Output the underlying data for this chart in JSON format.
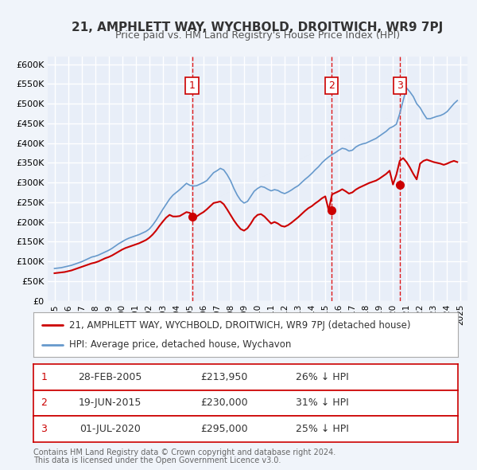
{
  "title": "21, AMPHLETT WAY, WYCHBOLD, DROITWICH, WR9 7PJ",
  "subtitle": "Price paid vs. HM Land Registry's House Price Index (HPI)",
  "bg_color": "#f0f4fa",
  "plot_bg_color": "#e8eef8",
  "grid_color": "#ffffff",
  "ylabel": "",
  "ylim": [
    0,
    620000
  ],
  "yticks": [
    0,
    50000,
    100000,
    150000,
    200000,
    250000,
    300000,
    350000,
    400000,
    450000,
    500000,
    550000,
    600000
  ],
  "ytick_labels": [
    "£0",
    "£50K",
    "£100K",
    "£150K",
    "£200K",
    "£250K",
    "£300K",
    "£350K",
    "£400K",
    "£450K",
    "£500K",
    "£550K",
    "£600K"
  ],
  "xlim_start": 1994.5,
  "xlim_end": 2025.5,
  "xticks": [
    1995,
    1996,
    1997,
    1998,
    1999,
    2000,
    2001,
    2002,
    2003,
    2004,
    2005,
    2006,
    2007,
    2008,
    2009,
    2010,
    2011,
    2012,
    2013,
    2014,
    2015,
    2016,
    2017,
    2018,
    2019,
    2020,
    2021,
    2022,
    2023,
    2024,
    2025
  ],
  "sale_color": "#cc0000",
  "hpi_color": "#6699cc",
  "sale_dot_color": "#cc0000",
  "vline_color": "#dd0000",
  "marker_label_color": "#cc0000",
  "legend_box_color": "#ffffff",
  "legend_border_color": "#aaaaaa",
  "sale_legend": "21, AMPHLETT WAY, WYCHBOLD, DROITWICH, WR9 7PJ (detached house)",
  "hpi_legend": "HPI: Average price, detached house, Wychavon",
  "transactions": [
    {
      "num": 1,
      "date": "28-FEB-2005",
      "year": 2005.16,
      "price": 213950,
      "pct": "26%",
      "dir": "↓"
    },
    {
      "num": 2,
      "date": "19-JUN-2015",
      "year": 2015.47,
      "price": 230000,
      "pct": "31%",
      "dir": "↓"
    },
    {
      "num": 3,
      "date": "01-JUL-2020",
      "year": 2020.5,
      "price": 295000,
      "pct": "25%",
      "dir": "↓"
    }
  ],
  "footer1": "Contains HM Land Registry data © Crown copyright and database right 2024.",
  "footer2": "This data is licensed under the Open Government Licence v3.0.",
  "hpi_data_x": [
    1995.0,
    1995.25,
    1995.5,
    1995.75,
    1996.0,
    1996.25,
    1996.5,
    1996.75,
    1997.0,
    1997.25,
    1997.5,
    1997.75,
    1998.0,
    1998.25,
    1998.5,
    1998.75,
    1999.0,
    1999.25,
    1999.5,
    1999.75,
    2000.0,
    2000.25,
    2000.5,
    2000.75,
    2001.0,
    2001.25,
    2001.5,
    2001.75,
    2002.0,
    2002.25,
    2002.5,
    2002.75,
    2003.0,
    2003.25,
    2003.5,
    2003.75,
    2004.0,
    2004.25,
    2004.5,
    2004.75,
    2005.0,
    2005.25,
    2005.5,
    2005.75,
    2006.0,
    2006.25,
    2006.5,
    2006.75,
    2007.0,
    2007.25,
    2007.5,
    2007.75,
    2008.0,
    2008.25,
    2008.5,
    2008.75,
    2009.0,
    2009.25,
    2009.5,
    2009.75,
    2010.0,
    2010.25,
    2010.5,
    2010.75,
    2011.0,
    2011.25,
    2011.5,
    2011.75,
    2012.0,
    2012.25,
    2012.5,
    2012.75,
    2013.0,
    2013.25,
    2013.5,
    2013.75,
    2014.0,
    2014.25,
    2014.5,
    2014.75,
    2015.0,
    2015.25,
    2015.5,
    2015.75,
    2016.0,
    2016.25,
    2016.5,
    2016.75,
    2017.0,
    2017.25,
    2017.5,
    2017.75,
    2018.0,
    2018.25,
    2018.5,
    2018.75,
    2019.0,
    2019.25,
    2019.5,
    2019.75,
    2020.0,
    2020.25,
    2020.5,
    2020.75,
    2021.0,
    2021.25,
    2021.5,
    2021.75,
    2022.0,
    2022.25,
    2022.5,
    2022.75,
    2023.0,
    2023.25,
    2023.5,
    2023.75,
    2024.0,
    2024.25,
    2024.5,
    2024.75
  ],
  "hpi_data_y": [
    82000,
    83000,
    84000,
    86000,
    88000,
    90000,
    93000,
    96000,
    99000,
    103000,
    107000,
    111000,
    113000,
    116000,
    120000,
    124000,
    128000,
    133000,
    139000,
    145000,
    150000,
    155000,
    159000,
    162000,
    165000,
    168000,
    172000,
    176000,
    182000,
    192000,
    204000,
    218000,
    232000,
    245000,
    258000,
    268000,
    275000,
    282000,
    290000,
    298000,
    293000,
    291000,
    292000,
    296000,
    300000,
    305000,
    315000,
    325000,
    330000,
    336000,
    332000,
    320000,
    305000,
    285000,
    268000,
    255000,
    248000,
    252000,
    265000,
    278000,
    285000,
    290000,
    288000,
    283000,
    279000,
    282000,
    280000,
    275000,
    272000,
    276000,
    281000,
    287000,
    292000,
    300000,
    308000,
    315000,
    323000,
    332000,
    340000,
    350000,
    358000,
    365000,
    371000,
    376000,
    382000,
    387000,
    385000,
    380000,
    382000,
    390000,
    395000,
    398000,
    400000,
    404000,
    408000,
    412000,
    418000,
    424000,
    430000,
    438000,
    442000,
    448000,
    475000,
    508000,
    540000,
    530000,
    518000,
    500000,
    490000,
    475000,
    462000,
    462000,
    465000,
    468000,
    470000,
    474000,
    480000,
    490000,
    500000,
    508000
  ],
  "sale_data_x": [
    1995.0,
    1995.25,
    1995.5,
    1995.75,
    1996.0,
    1996.25,
    1996.5,
    1996.75,
    1997.0,
    1997.25,
    1997.5,
    1997.75,
    1998.0,
    1998.25,
    1998.5,
    1998.75,
    1999.0,
    1999.25,
    1999.5,
    1999.75,
    2000.0,
    2000.25,
    2000.5,
    2000.75,
    2001.0,
    2001.25,
    2001.5,
    2001.75,
    2002.0,
    2002.25,
    2002.5,
    2002.75,
    2003.0,
    2003.25,
    2003.5,
    2003.75,
    2004.0,
    2004.25,
    2004.5,
    2004.75,
    2005.0,
    2005.25,
    2005.5,
    2005.75,
    2006.0,
    2006.25,
    2006.5,
    2006.75,
    2007.0,
    2007.25,
    2007.5,
    2007.75,
    2008.0,
    2008.25,
    2008.5,
    2008.75,
    2009.0,
    2009.25,
    2009.5,
    2009.75,
    2010.0,
    2010.25,
    2010.5,
    2010.75,
    2011.0,
    2011.25,
    2011.5,
    2011.75,
    2012.0,
    2012.25,
    2012.5,
    2012.75,
    2013.0,
    2013.25,
    2013.5,
    2013.75,
    2014.0,
    2014.25,
    2014.5,
    2014.75,
    2015.0,
    2015.25,
    2015.5,
    2015.75,
    2016.0,
    2016.25,
    2016.5,
    2016.75,
    2017.0,
    2017.25,
    2017.5,
    2017.75,
    2018.0,
    2018.25,
    2018.5,
    2018.75,
    2019.0,
    2019.25,
    2019.5,
    2019.75,
    2020.0,
    2020.25,
    2020.5,
    2020.75,
    2021.0,
    2021.25,
    2021.5,
    2021.75,
    2022.0,
    2022.25,
    2022.5,
    2022.75,
    2023.0,
    2023.25,
    2023.5,
    2023.75,
    2024.0,
    2024.25,
    2024.5,
    2024.75
  ],
  "sale_data_y": [
    70000,
    71000,
    72000,
    73000,
    75000,
    77000,
    80000,
    83000,
    86000,
    89000,
    92000,
    95000,
    97000,
    100000,
    104000,
    108000,
    111000,
    115000,
    120000,
    125000,
    130000,
    134000,
    137000,
    140000,
    143000,
    146000,
    150000,
    154000,
    160000,
    168000,
    178000,
    190000,
    201000,
    211000,
    218000,
    213950,
    213950,
    215000,
    220000,
    225000,
    223000,
    213950,
    213950,
    220000,
    225000,
    232000,
    240000,
    248000,
    250000,
    252000,
    245000,
    232000,
    218000,
    204000,
    192000,
    182000,
    178000,
    184000,
    196000,
    210000,
    218000,
    220000,
    213950,
    205000,
    196000,
    200000,
    196000,
    190000,
    188000,
    192000,
    198000,
    205000,
    212000,
    220000,
    228000,
    235000,
    240000,
    247000,
    253000,
    260000,
    265000,
    230000,
    270000,
    274000,
    278000,
    283000,
    278000,
    272000,
    275000,
    282000,
    287000,
    291000,
    295000,
    299000,
    302000,
    305000,
    310000,
    316000,
    322000,
    330000,
    295000,
    320000,
    355000,
    362000,
    352000,
    338000,
    322000,
    308000,
    348000,
    355000,
    358000,
    355000,
    352000,
    350000,
    348000,
    345000,
    348000,
    352000,
    355000,
    352000
  ]
}
